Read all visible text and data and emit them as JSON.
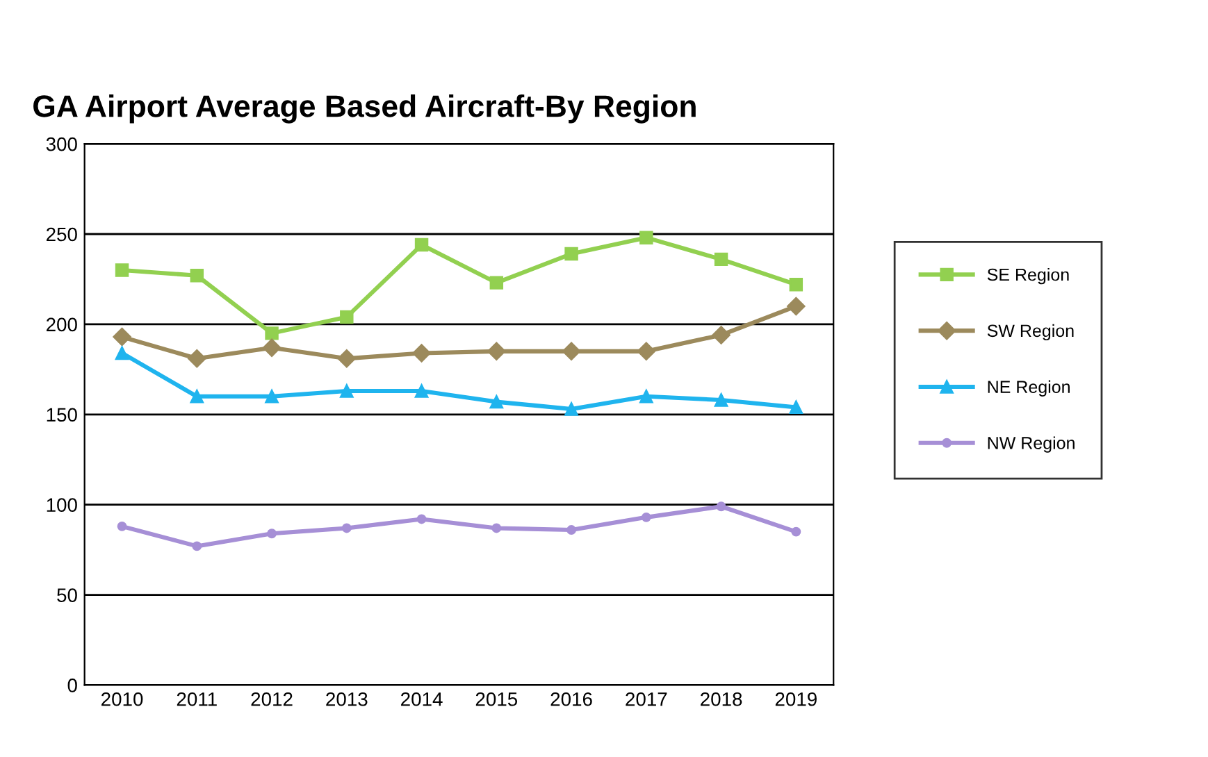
{
  "chart_data": {
    "type": "line",
    "title": "GA Airport Average Based Aircraft-By Region",
    "categories": [
      "2010",
      "2011",
      "2012",
      "2013",
      "2014",
      "2015",
      "2016",
      "2017",
      "2018",
      "2019"
    ],
    "series": [
      {
        "name": "SE Region",
        "color": "#92d050",
        "marker": "square",
        "values": [
          230,
          227,
          195,
          204,
          244,
          223,
          239,
          248,
          236,
          222
        ]
      },
      {
        "name": "SW Region",
        "color": "#9c8a5c",
        "marker": "diamond",
        "values": [
          193,
          181,
          187,
          181,
          184,
          185,
          185,
          185,
          194,
          210
        ]
      },
      {
        "name": "NE Region",
        "color": "#1fb4ee",
        "marker": "triangle",
        "values": [
          184,
          160,
          160,
          163,
          163,
          157,
          153,
          160,
          158,
          154
        ]
      },
      {
        "name": "NW Region",
        "color": "#a68fd6",
        "marker": "circle",
        "values": [
          88,
          77,
          84,
          87,
          92,
          87,
          86,
          93,
          99,
          85
        ]
      }
    ],
    "ylim": [
      0,
      300
    ],
    "yticks": [
      0,
      50,
      100,
      150,
      200,
      250,
      300
    ],
    "grid": "y",
    "legend": "right",
    "line_style": "solid"
  }
}
